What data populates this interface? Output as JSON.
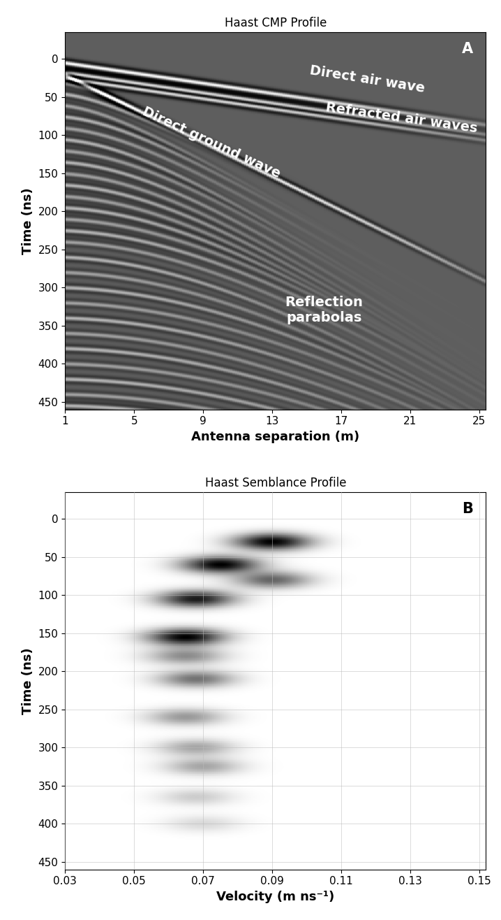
{
  "chart_data": [
    {
      "type": "cmp",
      "title": "Haast CMP Profile",
      "panel_label": "A",
      "xlabel": "Antenna separation (m)",
      "ylabel": "Time (ns)",
      "xlim": [
        1,
        25.4
      ],
      "xticks": [
        1,
        5,
        9,
        13,
        17,
        21,
        25
      ],
      "ylim": [
        460,
        -35
      ],
      "yticks": [
        0,
        50,
        100,
        150,
        200,
        250,
        300,
        350,
        400,
        450
      ],
      "grid": false,
      "annotations": [
        "Direct air wave",
        "Refracted air waves",
        "Direct ground wave",
        "Reflection\nparabolas"
      ],
      "events": [
        {
          "kind": "direct",
          "time_zero": 2,
          "velocity": 0.3
        },
        {
          "kind": "direct",
          "time_zero": 15,
          "velocity": 0.3
        },
        {
          "kind": "direct",
          "time_zero": 22,
          "velocity": 0.3
        },
        {
          "kind": "direct",
          "time_zero": 10,
          "velocity": 0.09
        },
        {
          "kind": "reflection",
          "t0": 30,
          "velocity": 0.09
        },
        {
          "kind": "reflection",
          "t0": 45,
          "velocity": 0.085
        },
        {
          "kind": "reflection",
          "t0": 60,
          "velocity": 0.075
        },
        {
          "kind": "reflection",
          "t0": 75,
          "velocity": 0.075
        },
        {
          "kind": "reflection",
          "t0": 90,
          "velocity": 0.072
        },
        {
          "kind": "reflection",
          "t0": 105,
          "velocity": 0.068
        },
        {
          "kind": "reflection",
          "t0": 120,
          "velocity": 0.068
        },
        {
          "kind": "reflection",
          "t0": 135,
          "velocity": 0.066
        },
        {
          "kind": "reflection",
          "t0": 150,
          "velocity": 0.065
        },
        {
          "kind": "reflection",
          "t0": 165,
          "velocity": 0.065
        },
        {
          "kind": "reflection",
          "t0": 180,
          "velocity": 0.065
        },
        {
          "kind": "reflection",
          "t0": 195,
          "velocity": 0.066
        },
        {
          "kind": "reflection",
          "t0": 210,
          "velocity": 0.067
        },
        {
          "kind": "reflection",
          "t0": 225,
          "velocity": 0.067
        },
        {
          "kind": "reflection",
          "t0": 240,
          "velocity": 0.066
        },
        {
          "kind": "reflection",
          "t0": 260,
          "velocity": 0.065
        },
        {
          "kind": "reflection",
          "t0": 280,
          "velocity": 0.066
        },
        {
          "kind": "reflection",
          "t0": 300,
          "velocity": 0.068
        },
        {
          "kind": "reflection",
          "t0": 320,
          "velocity": 0.069
        },
        {
          "kind": "reflection",
          "t0": 340,
          "velocity": 0.069
        },
        {
          "kind": "reflection",
          "t0": 360,
          "velocity": 0.068
        },
        {
          "kind": "reflection",
          "t0": 380,
          "velocity": 0.069
        },
        {
          "kind": "reflection",
          "t0": 400,
          "velocity": 0.07
        },
        {
          "kind": "reflection",
          "t0": 420,
          "velocity": 0.07
        },
        {
          "kind": "reflection",
          "t0": 440,
          "velocity": 0.07
        },
        {
          "kind": "reflection",
          "t0": 455,
          "velocity": 0.07
        }
      ]
    },
    {
      "type": "semblance",
      "title": "Haast Semblance Profile",
      "panel_label": "B",
      "xlabel": "Velocity (m ns⁻¹)",
      "ylabel": "Time (ns)",
      "xlim": [
        0.03,
        0.152
      ],
      "xticks": [
        0.03,
        0.05,
        0.07,
        0.09,
        0.11,
        0.13,
        0.15
      ],
      "ylim": [
        460,
        -35
      ],
      "yticks": [
        0,
        50,
        100,
        150,
        200,
        250,
        300,
        350,
        400,
        450
      ],
      "grid": true,
      "peaks": [
        {
          "time": 30,
          "velocity": 0.09,
          "semblance": 1.0
        },
        {
          "time": 60,
          "velocity": 0.075,
          "semblance": 1.0
        },
        {
          "time": 80,
          "velocity": 0.09,
          "semblance": 0.6
        },
        {
          "time": 105,
          "velocity": 0.068,
          "semblance": 0.9
        },
        {
          "time": 155,
          "velocity": 0.065,
          "semblance": 1.0
        },
        {
          "time": 180,
          "velocity": 0.065,
          "semblance": 0.45
        },
        {
          "time": 210,
          "velocity": 0.068,
          "semblance": 0.55
        },
        {
          "time": 260,
          "velocity": 0.065,
          "semblance": 0.4
        },
        {
          "time": 300,
          "velocity": 0.068,
          "semblance": 0.35
        },
        {
          "time": 325,
          "velocity": 0.07,
          "semblance": 0.35
        },
        {
          "time": 365,
          "velocity": 0.068,
          "semblance": 0.2
        },
        {
          "time": 400,
          "velocity": 0.07,
          "semblance": 0.15
        }
      ]
    }
  ]
}
